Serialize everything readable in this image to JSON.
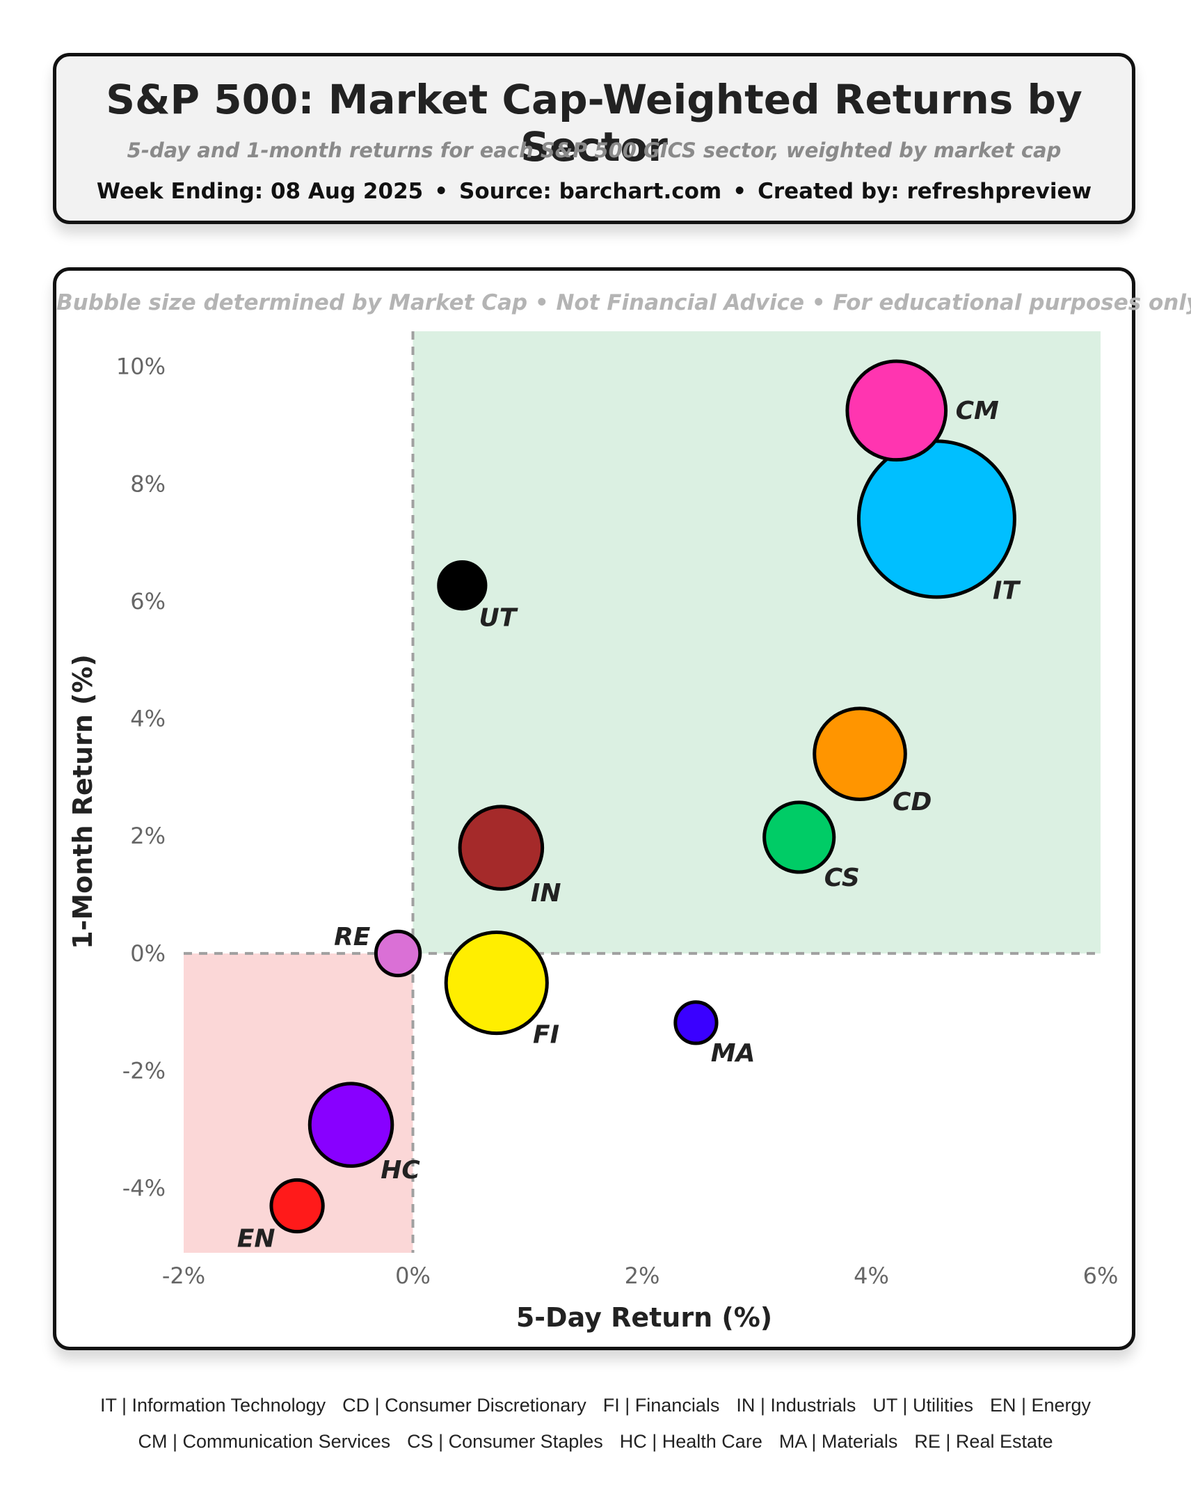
{
  "header": {
    "title": "S&P 500: Market Cap-Weighted Returns by Sector",
    "subtitle": "5-day and 1-month returns for each S&P 500 GICS sector, weighted by market cap",
    "week_ending": "Week Ending: 08 Aug 2025",
    "source": "Source: barchart.com",
    "created_by": "Created by: refreshpreview",
    "separator": "•"
  },
  "plot": {
    "disclaimer": "Bubble size determined by Market Cap • Not Financial Advice • For educational purposes only"
  },
  "chart_data": {
    "type": "scatter",
    "title": "S&P 500: Market Cap-Weighted Returns by Sector",
    "xlabel": "5-Day Return (%)",
    "ylabel": "1-Month Return (%)",
    "xlim": [
      -2,
      6
    ],
    "ylim": [
      -5.1,
      10.6
    ],
    "xticks": [
      -2,
      0,
      2,
      4,
      6
    ],
    "yticks": [
      10,
      8,
      6,
      4,
      2,
      0,
      -2,
      -4
    ],
    "xtick_labels": [
      "-2%",
      "0%",
      "2%",
      "4%",
      "6%"
    ],
    "ytick_labels": [
      "10%",
      "8%",
      "6%",
      "4%",
      "2%",
      "0%",
      "-2%",
      "-4%"
    ],
    "size_encoding": "Market Cap",
    "quadrants": {
      "positive_color": "#dbf0e2",
      "negative_color": "#fbd7d7"
    },
    "points": [
      {
        "code": "IT",
        "x": 4.57,
        "y": 7.4,
        "size": 100,
        "color": "#00bfff"
      },
      {
        "code": "CM",
        "x": 4.22,
        "y": 9.25,
        "size": 40,
        "color": "#ff35b0"
      },
      {
        "code": "UT",
        "x": 0.43,
        "y": 6.27,
        "size": 9,
        "color": "#000000"
      },
      {
        "code": "CD",
        "x": 3.9,
        "y": 3.4,
        "size": 34,
        "color": "#ff9500"
      },
      {
        "code": "CS",
        "x": 3.37,
        "y": 1.98,
        "size": 20,
        "color": "#00cc66"
      },
      {
        "code": "IN",
        "x": 0.77,
        "y": 1.8,
        "size": 28,
        "color": "#a52a2a"
      },
      {
        "code": "RE",
        "x": -0.13,
        "y": 0.0,
        "size": 8,
        "color": "#da70d6"
      },
      {
        "code": "FI",
        "x": 0.73,
        "y": -0.5,
        "size": 42,
        "color": "#ffee00"
      },
      {
        "code": "MA",
        "x": 2.47,
        "y": -1.18,
        "size": 7,
        "color": "#3a00ff"
      },
      {
        "code": "HC",
        "x": -0.54,
        "y": -2.92,
        "size": 28,
        "color": "#8800ff"
      },
      {
        "code": "EN",
        "x": -1.01,
        "y": -4.3,
        "size": 11,
        "color": "#ff1a1a"
      }
    ]
  },
  "legend": {
    "row1": [
      "IT | Information Technology",
      "CD | Consumer Discretionary",
      "FI | Financials",
      "IN | Industrials",
      "UT | Utilities",
      "EN | Energy"
    ],
    "row2": [
      "CM | Communication Services",
      "CS | Consumer Staples",
      "HC | Health Care",
      "MA | Materials",
      "RE | Real Estate"
    ]
  }
}
